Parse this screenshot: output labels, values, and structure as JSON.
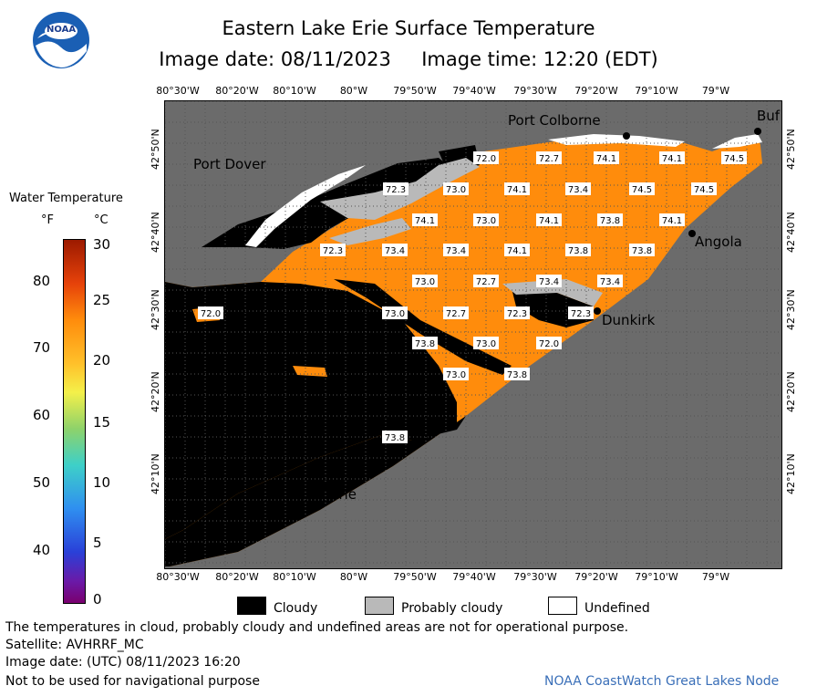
{
  "header": {
    "title": "Eastern Lake Erie Surface Temperature",
    "date_line": "Image date: 08/11/2023     Image time: 12:20 (EDT)"
  },
  "logo": {
    "text": "NOAA"
  },
  "legend": {
    "title": "Water Temperature",
    "unit_f": "°F",
    "unit_c": "°C",
    "f_ticks": [
      "80",
      "70",
      "60",
      "50",
      "40"
    ],
    "c_ticks": [
      "30",
      "25",
      "20",
      "15",
      "10",
      "5",
      "0"
    ]
  },
  "map": {
    "lon_labels": [
      "80°30'W",
      "80°20'W",
      "80°10'W",
      "80°W",
      "79°50'W",
      "79°40'W",
      "79°30'W",
      "79°20'W",
      "79°10'W",
      "79°W"
    ],
    "lat_labels": [
      "42°50'N",
      "42°40'N",
      "42°30'N",
      "42°20'N",
      "42°10'N"
    ],
    "cities": [
      {
        "name": "Port Dover"
      },
      {
        "name": "Port Colborne"
      },
      {
        "name": "Buf"
      },
      {
        "name": "Angola"
      },
      {
        "name": "Dunkirk"
      },
      {
        "name": "Erie"
      }
    ],
    "temps": [
      "72.0",
      "72.7",
      "74.1",
      "74.1",
      "74.5",
      "72.3",
      "73.0",
      "74.1",
      "73.4",
      "74.5",
      "74.5",
      "74.1",
      "73.0",
      "74.1",
      "73.8",
      "74.1",
      "72.3",
      "73.4",
      "73.4",
      "74.1",
      "73.8",
      "73.8",
      "73.0",
      "72.7",
      "73.4",
      "73.4",
      "72.0",
      "73.0",
      "72.7",
      "72.3",
      "72.3",
      "73.8",
      "73.0",
      "72.0",
      "73.0",
      "73.8",
      "73.8"
    ],
    "colors": {
      "water": "#ff8c0c",
      "cloud": "#000000",
      "prob_cloud": "#b9b9b9",
      "undefined": "#ffffff",
      "land": "#6b6b6b"
    }
  },
  "key": {
    "cloudy": "Cloudy",
    "probably_cloudy": "Probably cloudy",
    "undefined": "Undefined"
  },
  "footer": {
    "disclaimer": "The temperatures in cloud, probably cloudy and undefined areas are not for operational purpose.",
    "satellite": "Satellite: AVHRRF_MC",
    "utc": "Image date: (UTC) 08/11/2023  16:20",
    "nav": "Not to be used for navigational purpose",
    "credit": "NOAA CoastWatch Great Lakes Node"
  }
}
